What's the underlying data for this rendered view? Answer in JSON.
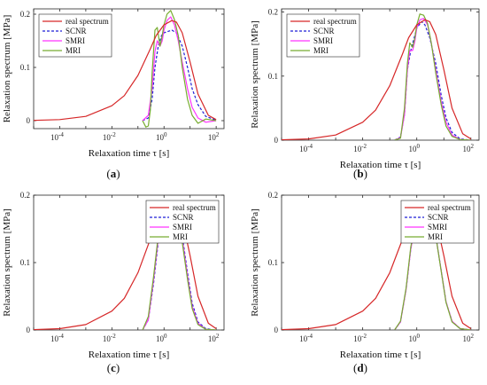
{
  "figure": {
    "colors": {
      "real": "#d62728",
      "scnr": "#1f1fd6",
      "smri": "#ff33ff",
      "mri": "#77ac30"
    }
  },
  "chart_data": [
    {
      "type": "line",
      "panel_label": "a",
      "xlabel": "Relaxation time τ [s]",
      "ylabel": "Relaxation spectrum  [MPa]",
      "xscale": "log",
      "xlim": [
        1e-05,
        200
      ],
      "ylim": [
        -0.015,
        0.21
      ],
      "xticks": [
        {
          "v": 0.0001,
          "e": "-4"
        },
        {
          "v": 0.01,
          "e": "-2"
        },
        {
          "v": 1,
          "e": "0"
        },
        {
          "v": 100,
          "e": "2"
        }
      ],
      "yticks": [
        {
          "v": 0,
          "t": "0"
        },
        {
          "v": 0.1,
          "t": "0.1"
        },
        {
          "v": 0.2,
          "t": "0.2"
        }
      ],
      "legend": {
        "position": "top-left",
        "entries": [
          "real spectrum",
          "SCNR",
          "SMRI",
          "MRI"
        ]
      },
      "series": [
        {
          "name": "real spectrum",
          "style": "solid",
          "x": [
            1e-05,
            0.0001,
            0.001,
            0.01,
            0.03,
            0.1,
            0.3,
            0.5,
            1,
            2,
            3,
            5,
            10,
            20,
            50,
            100
          ],
          "y": [
            0.0005,
            0.002,
            0.008,
            0.028,
            0.047,
            0.085,
            0.135,
            0.16,
            0.18,
            0.188,
            0.185,
            0.165,
            0.11,
            0.05,
            0.01,
            0.002
          ]
        },
        {
          "name": "SCNR",
          "style": "dashed",
          "x": [
            0.15,
            0.25,
            0.35,
            0.45,
            0.6,
            0.8,
            1,
            1.5,
            2,
            3,
            5,
            8,
            12,
            20,
            40,
            100
          ],
          "y": [
            0,
            0.005,
            0.04,
            0.1,
            0.14,
            0.16,
            0.165,
            0.168,
            0.17,
            0.165,
            0.14,
            0.1,
            0.06,
            0.03,
            0.008,
            0.001
          ]
        },
        {
          "name": "SMRI",
          "style": "solid",
          "x": [
            0.15,
            0.25,
            0.35,
            0.45,
            0.55,
            0.7,
            0.85,
            1,
            1.3,
            1.8,
            2.5,
            3.5,
            5,
            8,
            12,
            20,
            40,
            100
          ],
          "y": [
            0,
            0.01,
            0.06,
            0.13,
            0.15,
            0.14,
            0.15,
            0.17,
            0.188,
            0.195,
            0.18,
            0.15,
            0.11,
            0.06,
            0.025,
            0.005,
            -0.003,
            0
          ]
        },
        {
          "name": "MRI",
          "style": "solid",
          "x": [
            0.15,
            0.2,
            0.25,
            0.3,
            0.35,
            0.45,
            0.55,
            0.7,
            0.85,
            1,
            1.3,
            1.8,
            2.5,
            3.5,
            5,
            8,
            12,
            20,
            40,
            100
          ],
          "y": [
            0,
            -0.012,
            -0.01,
            0.02,
            0.09,
            0.17,
            0.175,
            0.14,
            0.16,
            0.18,
            0.2,
            0.207,
            0.19,
            0.16,
            0.1,
            0.04,
            0.01,
            -0.005,
            0.003,
            0
          ]
        }
      ]
    },
    {
      "type": "line",
      "panel_label": "b",
      "xlabel": "Relaxation time τ [s]",
      "ylabel": "Relaxation spectrum  [MPa]",
      "xscale": "log",
      "xlim": [
        1e-05,
        200
      ],
      "ylim": [
        0,
        0.205
      ],
      "xticks": [
        {
          "v": 0.0001,
          "e": "-4"
        },
        {
          "v": 0.01,
          "e": "-2"
        },
        {
          "v": 1,
          "e": "0"
        },
        {
          "v": 100,
          "e": "2"
        }
      ],
      "yticks": [
        {
          "v": 0,
          "t": "0"
        },
        {
          "v": 0.1,
          "t": "0.1"
        },
        {
          "v": 0.2,
          "t": "0.2"
        }
      ],
      "legend": {
        "position": "top-left",
        "entries": [
          "real spectrum",
          "SCNR",
          "SMRI",
          "MRI"
        ]
      },
      "series": [
        {
          "name": "real spectrum",
          "style": "solid",
          "x": [
            1e-05,
            0.0001,
            0.001,
            0.01,
            0.03,
            0.1,
            0.3,
            0.5,
            1,
            2,
            3,
            5,
            10,
            20,
            50,
            100
          ],
          "y": [
            0.0005,
            0.002,
            0.008,
            0.028,
            0.047,
            0.085,
            0.135,
            0.16,
            0.18,
            0.188,
            0.185,
            0.165,
            0.11,
            0.05,
            0.01,
            0.002
          ]
        },
        {
          "name": "SCNR",
          "style": "dashed",
          "x": [
            0.15,
            0.25,
            0.35,
            0.45,
            0.6,
            0.8,
            1,
            1.5,
            2,
            3,
            5,
            8,
            12,
            20,
            40,
            100
          ],
          "y": [
            0,
            0.005,
            0.04,
            0.11,
            0.14,
            0.16,
            0.175,
            0.185,
            0.18,
            0.16,
            0.12,
            0.07,
            0.035,
            0.012,
            0.002,
            0
          ]
        },
        {
          "name": "SMRI",
          "style": "solid",
          "x": [
            0.15,
            0.25,
            0.35,
            0.45,
            0.55,
            0.7,
            0.85,
            1,
            1.3,
            1.8,
            2.5,
            3.5,
            5,
            8,
            12,
            20,
            40,
            100
          ],
          "y": [
            0,
            0.004,
            0.04,
            0.11,
            0.14,
            0.14,
            0.155,
            0.175,
            0.188,
            0.19,
            0.18,
            0.15,
            0.11,
            0.06,
            0.028,
            0.008,
            0.001,
            0
          ]
        },
        {
          "name": "MRI",
          "style": "solid",
          "x": [
            0.15,
            0.25,
            0.35,
            0.45,
            0.55,
            0.7,
            0.85,
            1,
            1.3,
            1.8,
            2.5,
            3.5,
            5,
            8,
            12,
            20,
            40,
            100
          ],
          "y": [
            0,
            0.003,
            0.05,
            0.12,
            0.152,
            0.145,
            0.16,
            0.18,
            0.197,
            0.195,
            0.182,
            0.15,
            0.105,
            0.055,
            0.022,
            0.006,
            0.001,
            0
          ]
        }
      ]
    },
    {
      "type": "line",
      "panel_label": "c",
      "xlabel": "Relaxation time τ [s]",
      "ylabel": "Relaxation spectrum  [MPa]",
      "xscale": "log",
      "xlim": [
        1e-05,
        200
      ],
      "ylim": [
        0,
        0.2
      ],
      "xticks": [
        {
          "v": 0.0001,
          "e": "-4"
        },
        {
          "v": 0.01,
          "e": "-2"
        },
        {
          "v": 1,
          "e": "0"
        },
        {
          "v": 100,
          "e": "2"
        }
      ],
      "yticks": [
        {
          "v": 0,
          "t": "0"
        },
        {
          "v": 0.1,
          "t": "0.1"
        },
        {
          "v": 0.2,
          "t": "0.2"
        }
      ],
      "legend": {
        "position": "top-right",
        "entries": [
          "real spectrum",
          "SCNR",
          "SMRI",
          "MRI"
        ]
      },
      "series": [
        {
          "name": "real spectrum",
          "style": "solid",
          "x": [
            1e-05,
            0.0001,
            0.001,
            0.01,
            0.03,
            0.1,
            0.3,
            0.5,
            1,
            2,
            3,
            5,
            10,
            20,
            50,
            100
          ],
          "y": [
            0.0005,
            0.002,
            0.008,
            0.028,
            0.047,
            0.085,
            0.135,
            0.16,
            0.18,
            0.188,
            0.185,
            0.165,
            0.11,
            0.05,
            0.01,
            0.002
          ]
        },
        {
          "name": "SCNR",
          "style": "dashed",
          "x": [
            0.15,
            0.25,
            0.4,
            0.6,
            0.9,
            1.3,
            2,
            3,
            5,
            8,
            12,
            20,
            40,
            100
          ],
          "y": [
            0,
            0.015,
            0.07,
            0.13,
            0.165,
            0.18,
            0.183,
            0.175,
            0.14,
            0.085,
            0.04,
            0.012,
            0.002,
            0
          ]
        },
        {
          "name": "SMRI",
          "style": "solid",
          "x": [
            0.15,
            0.25,
            0.4,
            0.6,
            0.9,
            1.3,
            2,
            3,
            5,
            8,
            12,
            20,
            40,
            100
          ],
          "y": [
            0,
            0.015,
            0.075,
            0.135,
            0.168,
            0.182,
            0.18,
            0.17,
            0.135,
            0.08,
            0.035,
            0.01,
            0.001,
            0
          ]
        },
        {
          "name": "MRI",
          "style": "solid",
          "x": [
            0.15,
            0.25,
            0.4,
            0.6,
            0.8,
            1.1,
            1.5,
            2,
            3,
            5,
            8,
            12,
            20,
            40,
            100
          ],
          "y": [
            0,
            0.02,
            0.08,
            0.14,
            0.165,
            0.19,
            0.185,
            0.178,
            0.17,
            0.13,
            0.075,
            0.032,
            0.008,
            0.001,
            0
          ]
        }
      ]
    },
    {
      "type": "line",
      "panel_label": "d",
      "xlabel": "Relaxation time τ [s]",
      "ylabel": "Relaxation spectrum  [MPa]",
      "xscale": "log",
      "xlim": [
        1e-05,
        200
      ],
      "ylim": [
        0,
        0.2
      ],
      "xticks": [
        {
          "v": 0.0001,
          "e": "-4"
        },
        {
          "v": 0.01,
          "e": "-2"
        },
        {
          "v": 1,
          "e": "0"
        },
        {
          "v": 100,
          "e": "2"
        }
      ],
      "yticks": [
        {
          "v": 0,
          "t": "0"
        },
        {
          "v": 0.1,
          "t": "0.1"
        },
        {
          "v": 0.2,
          "t": "0.2"
        }
      ],
      "legend": {
        "position": "top-right",
        "entries": [
          "real spectrum",
          "SCNR",
          "SMRI",
          "MRI"
        ]
      },
      "series": [
        {
          "name": "real spectrum",
          "style": "solid",
          "x": [
            1e-05,
            0.0001,
            0.001,
            0.01,
            0.03,
            0.1,
            0.3,
            0.5,
            1,
            2,
            3,
            5,
            10,
            20,
            50,
            100
          ],
          "y": [
            0.0005,
            0.002,
            0.008,
            0.028,
            0.047,
            0.085,
            0.135,
            0.16,
            0.18,
            0.188,
            0.185,
            0.165,
            0.11,
            0.05,
            0.01,
            0.002
          ]
        },
        {
          "name": "SCNR",
          "style": "dashed",
          "x": [
            0.15,
            0.25,
            0.4,
            0.6,
            0.9,
            1.3,
            2,
            3,
            5,
            8,
            12,
            20,
            40,
            100
          ],
          "y": [
            0,
            0.012,
            0.06,
            0.12,
            0.158,
            0.176,
            0.18,
            0.172,
            0.14,
            0.088,
            0.042,
            0.013,
            0.002,
            0
          ]
        },
        {
          "name": "SMRI",
          "style": "solid",
          "x": [
            0.15,
            0.25,
            0.4,
            0.6,
            0.9,
            1.3,
            2,
            3,
            5,
            8,
            12,
            20,
            40,
            100
          ],
          "y": [
            0,
            0.012,
            0.06,
            0.12,
            0.158,
            0.176,
            0.18,
            0.172,
            0.14,
            0.088,
            0.042,
            0.013,
            0.002,
            0
          ]
        },
        {
          "name": "MRI",
          "style": "solid",
          "x": [
            0.15,
            0.25,
            0.4,
            0.6,
            0.9,
            1.3,
            2,
            3,
            5,
            8,
            12,
            20,
            40,
            100
          ],
          "y": [
            0,
            0.013,
            0.062,
            0.123,
            0.16,
            0.178,
            0.182,
            0.174,
            0.14,
            0.087,
            0.041,
            0.012,
            0.002,
            0
          ]
        }
      ]
    }
  ]
}
